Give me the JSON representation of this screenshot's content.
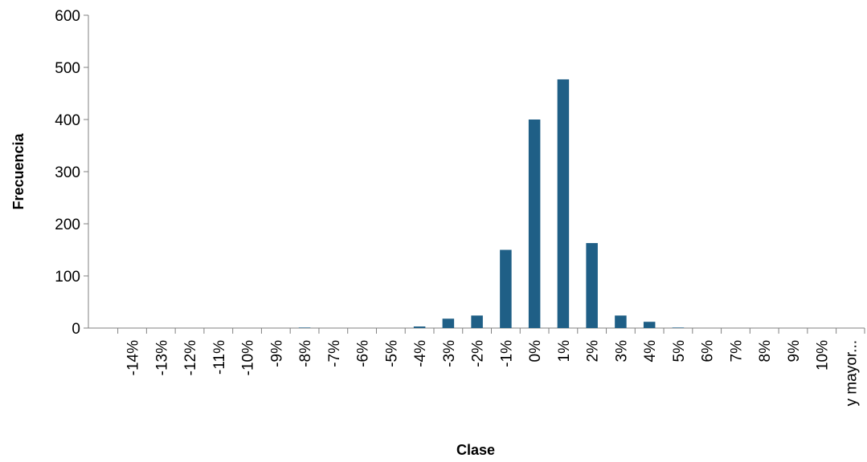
{
  "chart_data": {
    "type": "bar",
    "xlabel": "Clase",
    "ylabel": "Frecuencia",
    "ylim": [
      0,
      600
    ],
    "yticks": [
      0,
      100,
      200,
      300,
      400,
      500,
      600
    ],
    "grid": false,
    "legend": "none",
    "categories": [
      "-14%",
      "-13%",
      "-12%",
      "-11%",
      "-10%",
      "-9%",
      "-8%",
      "-7%",
      "-6%",
      "-5%",
      "-4%",
      "-3%",
      "-2%",
      "-1%",
      "0%",
      "1%",
      "2%",
      "3%",
      "4%",
      "5%",
      "6%",
      "7%",
      "8%",
      "9%",
      "10%",
      "y mayor..."
    ],
    "values": [
      0,
      0,
      0,
      0,
      0,
      0,
      1,
      0,
      0,
      0,
      3,
      18,
      24,
      150,
      400,
      477,
      163,
      24,
      12,
      1,
      0,
      0,
      0,
      0,
      0,
      0
    ]
  },
  "colors": {
    "bar": "#1f5f86",
    "axis": "#808080",
    "text": "#000000"
  }
}
